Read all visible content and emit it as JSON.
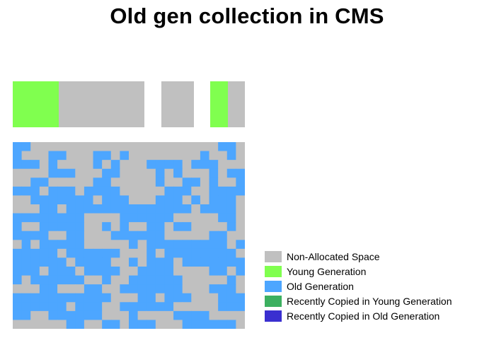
{
  "title": "Old gen collection in CMS",
  "colors": {
    "non_allocated": "#c0c0c0",
    "young": "#80ff4f",
    "old": "#4da6ff",
    "recently_copied_young": "#3cb060",
    "recently_copied_old": "#3a2fd0"
  },
  "young_gen": {
    "eden_young_fraction": 0.35,
    "to_space_young_fraction": 0.52
  },
  "legend": [
    {
      "label": "Non-Allocated Space",
      "color_key": "non_allocated"
    },
    {
      "label": "Young Generation",
      "color_key": "young"
    },
    {
      "label": "Old Generation",
      "color_key": "old"
    },
    {
      "label": "Recently Copied in Young Generation",
      "color_key": "recently_copied_young"
    },
    {
      "label": "Recently Copied in Old Generation",
      "color_key": "recently_copied_old"
    }
  ],
  "old_gen_grid": [
    "OOGGGGGGGGGGGGGGGGGGGGGOOG",
    "OGGGOOGGGOOGOGGGGGGGGOGGOG",
    "OOOGOGGGGOGOGGGOOOOGOOOGGG",
    "GGGGOOOGGGOOGGGGOGOGGGOGOO",
    "GGOOGGGGGOOGGGGGOGGOOGOGGO",
    "OOOGOOOGOOOOGGGGGOOOGGOOOO",
    "GGOOOOOOOGOOOGGGOOOGOGOOOG",
    "GGGOOGOOOOOOOOOOOOOOGOOOOG",
    "OOOOOOOOGGGGOOOOOOGGGGGOOG",
    "OGGOOOOOGGOGOGGOOGOOGGGGOG",
    "OOOOGGOOGGGOOOOOOGGGGGOOGG",
    "GOGOOOOOGGGGGOGOOOOOOOOOGO",
    "OOOOOGOOOOOOGGGOGOOOOOOOOG",
    "OOOOOOGOOOOGGOGOOOGOOOOOOO",
    "OOOGOOOGOOOOGGOOOOGGGGOOGO",
    "OGOOOOOOGGOGGOOOOOOGGGGGOG",
    "GGGOOGGGOOGGOOOOOOOGGGOOOG",
    "OOOOOOOOOOOGGGOOGOOOGGGOOO",
    "OOOOOOGOOOGGOOOOOOGGGGGOOO",
    "OOGGOOOOOOGGGOGGGGOOOOGGGG",
    "GGGGGGOOGGOOGOOOGGGOOOOOOG"
  ]
}
